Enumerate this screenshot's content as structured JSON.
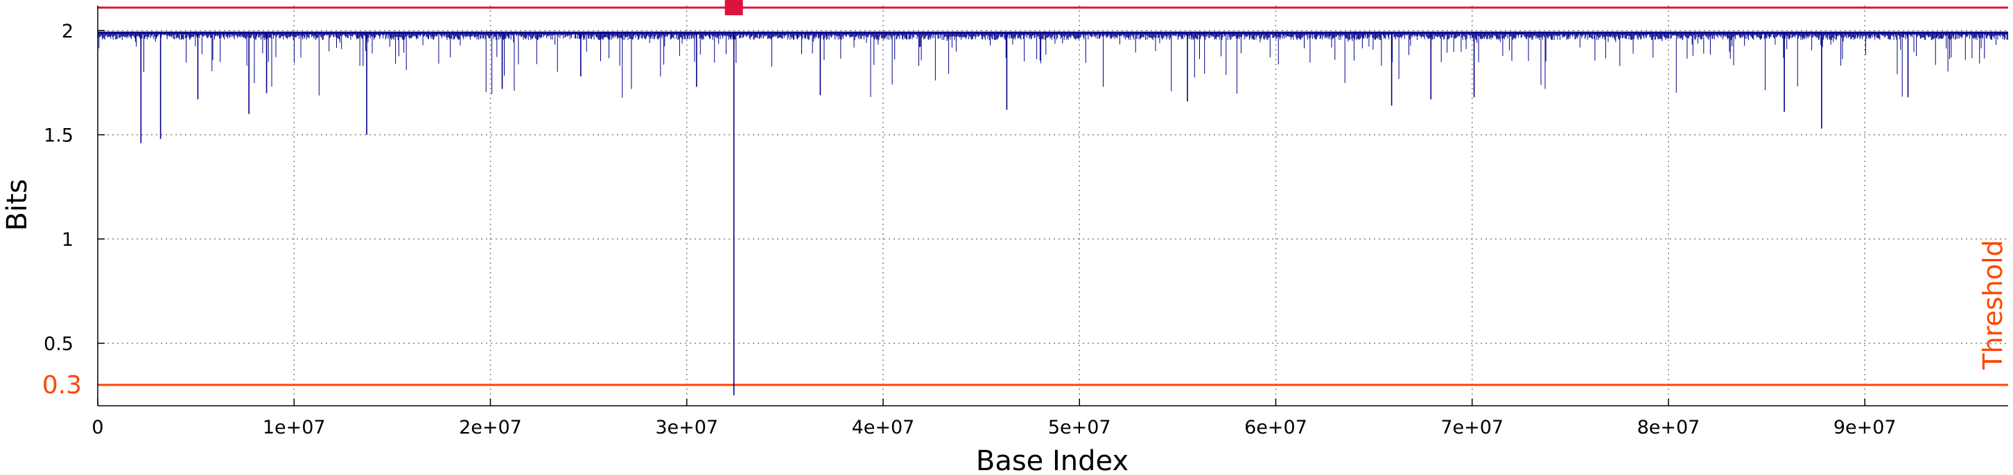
{
  "chart_data": {
    "type": "line",
    "title": "",
    "xlabel": "Base Index",
    "ylabel": "Bits",
    "xlim": [
      0,
      97300000
    ],
    "ylim": [
      0.2,
      2.12
    ],
    "x_ticks": [
      {
        "value": 0,
        "label": "0"
      },
      {
        "value": 10000000,
        "label": "1e+07"
      },
      {
        "value": 20000000,
        "label": "2e+07"
      },
      {
        "value": 30000000,
        "label": "3e+07"
      },
      {
        "value": 40000000,
        "label": "4e+07"
      },
      {
        "value": 50000000,
        "label": "5e+07"
      },
      {
        "value": 60000000,
        "label": "6e+07"
      },
      {
        "value": 70000000,
        "label": "7e+07"
      },
      {
        "value": 80000000,
        "label": "8e+07"
      },
      {
        "value": 90000000,
        "label": "9e+07"
      }
    ],
    "y_ticks": [
      {
        "value": 0.5,
        "label": "0.5"
      },
      {
        "value": 1,
        "label": "1"
      },
      {
        "value": 1.5,
        "label": "1.5"
      },
      {
        "value": 2,
        "label": "2"
      }
    ],
    "grid": true,
    "series": [
      {
        "color": "#00008b",
        "baseline": 1.99,
        "notable_dips": [
          {
            "x": 2200000,
            "y": 1.46
          },
          {
            "x": 3200000,
            "y": 1.48
          },
          {
            "x": 5100000,
            "y": 1.67
          },
          {
            "x": 7700000,
            "y": 1.6
          },
          {
            "x": 8600000,
            "y": 1.7
          },
          {
            "x": 13700000,
            "y": 1.5
          },
          {
            "x": 20600000,
            "y": 1.72
          },
          {
            "x": 24600000,
            "y": 1.78
          },
          {
            "x": 30500000,
            "y": 1.73
          },
          {
            "x": 32400000,
            "y": 0.25
          },
          {
            "x": 36800000,
            "y": 1.69
          },
          {
            "x": 46300000,
            "y": 1.62
          },
          {
            "x": 55500000,
            "y": 1.66
          },
          {
            "x": 65900000,
            "y": 1.64
          },
          {
            "x": 67900000,
            "y": 1.67
          },
          {
            "x": 70100000,
            "y": 1.68
          },
          {
            "x": 85900000,
            "y": 1.61
          },
          {
            "x": 87800000,
            "y": 1.53
          },
          {
            "x": 92200000,
            "y": 1.68
          }
        ]
      }
    ],
    "reference_lines": [
      {
        "name": "Threshold",
        "value": 0.3,
        "label": "0.3",
        "color": "#ff4500"
      },
      {
        "value": 2.11,
        "color": "#dc143c"
      }
    ],
    "marker": {
      "x": 32400000,
      "y": 2.11,
      "shape": "square",
      "color": "#dc143c"
    },
    "colors": {
      "grid": "#808080",
      "axis": "#000000"
    }
  }
}
